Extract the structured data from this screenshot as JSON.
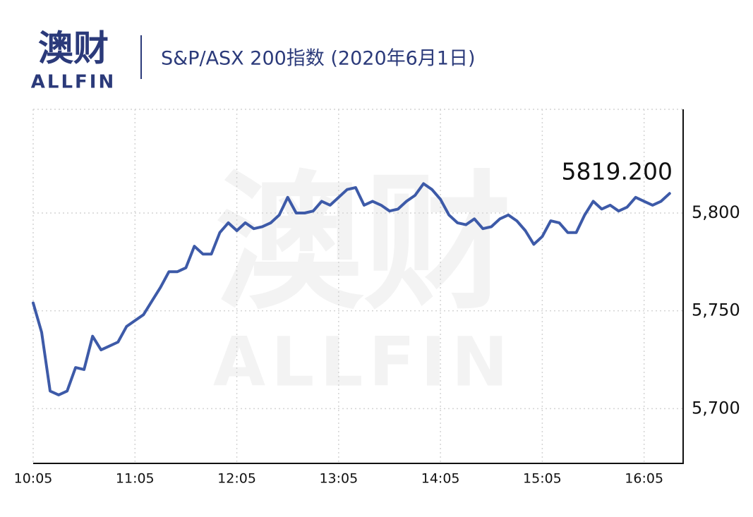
{
  "logo": {
    "name": "澳财",
    "sub": "ALLFIN"
  },
  "chart_data": {
    "type": "line",
    "title": "S&P/ASX 200指数 (2020年6月1日)",
    "annotation": "5819.200",
    "color": "#3d5aa8",
    "x": [
      "10:05",
      "10:10",
      "10:15",
      "10:20",
      "10:25",
      "10:30",
      "10:35",
      "10:40",
      "10:45",
      "10:50",
      "10:55",
      "11:00",
      "11:05",
      "11:10",
      "11:15",
      "11:20",
      "11:25",
      "11:30",
      "11:35",
      "11:40",
      "11:45",
      "11:50",
      "11:55",
      "12:00",
      "12:05",
      "12:10",
      "12:15",
      "12:20",
      "12:25",
      "12:30",
      "12:35",
      "12:40",
      "12:45",
      "12:50",
      "12:55",
      "13:00",
      "13:05",
      "13:10",
      "13:15",
      "13:20",
      "13:25",
      "13:30",
      "13:35",
      "13:40",
      "13:45",
      "13:50",
      "13:55",
      "14:00",
      "14:05",
      "14:10",
      "14:15",
      "14:20",
      "14:25",
      "14:30",
      "14:35",
      "14:40",
      "14:45",
      "14:50",
      "14:55",
      "15:00",
      "15:05",
      "15:10",
      "15:15",
      "15:20",
      "15:25",
      "15:30",
      "15:35",
      "15:40",
      "15:45",
      "15:50",
      "15:55",
      "16:00",
      "16:05",
      "16:10",
      "16:15",
      "16:20"
    ],
    "values": [
      5754,
      5739,
      5709,
      5707,
      5709,
      5721,
      5720,
      5737,
      5730,
      5732,
      5734,
      5742,
      5745,
      5748,
      5755,
      5762,
      5770,
      5770,
      5772,
      5783,
      5779,
      5779,
      5790,
      5795,
      5791,
      5795,
      5792,
      5793,
      5795,
      5799,
      5808,
      5800,
      5800,
      5801,
      5806,
      5804,
      5808,
      5812,
      5813,
      5804,
      5806,
      5804,
      5801,
      5802,
      5806,
      5809,
      5815,
      5812,
      5807,
      5799,
      5795,
      5794,
      5797,
      5792,
      5793,
      5797,
      5799,
      5796,
      5791,
      5784,
      5788,
      5796,
      5795,
      5790,
      5790,
      5799,
      5806,
      5802,
      5804,
      5801,
      5803,
      5808,
      5806,
      5804,
      5806,
      5810
    ],
    "xlim": [
      "10:05",
      "16:28"
    ],
    "xticks": [
      "10:05",
      "11:05",
      "12:05",
      "13:05",
      "14:05",
      "15:05",
      "16:05"
    ],
    "ylim": [
      5672,
      5853
    ],
    "yticks": [
      {
        "value": 5700,
        "label": "5,700"
      },
      {
        "value": 5750,
        "label": "5,750"
      },
      {
        "value": 5800,
        "label": "5,800"
      }
    ],
    "grid": true
  }
}
